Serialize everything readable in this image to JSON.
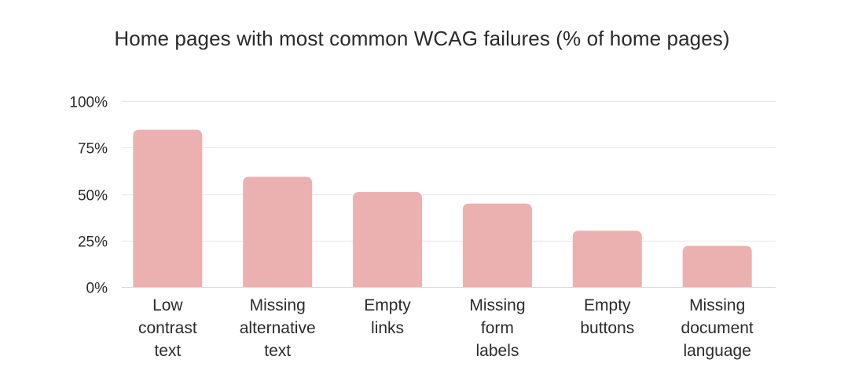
{
  "chart_data": {
    "type": "bar",
    "title": "Home pages with most common WCAG failures (% of home pages)",
    "xlabel": "",
    "ylabel": "",
    "categories": [
      [
        "Low",
        "contrast",
        "text"
      ],
      [
        "Missing",
        "alternative",
        "text"
      ],
      [
        "Empty",
        "links"
      ],
      [
        "Missing",
        "form",
        "labels"
      ],
      [
        "Empty",
        "buttons"
      ],
      [
        "Missing",
        "document",
        "language"
      ]
    ],
    "values": [
      84.6,
      59.3,
      51.1,
      44.9,
      30.3,
      22.1
    ],
    "ylim": [
      0,
      100
    ],
    "yticks": [
      0,
      25,
      50,
      75,
      100
    ],
    "ytick_labels": [
      "0%",
      "25%",
      "50%",
      "75%",
      "100%"
    ],
    "grid": true,
    "legend": "none",
    "colors": {
      "bar": "#ebb1b1",
      "grid": "#e6e6e6",
      "text": "#2b2b2b"
    }
  }
}
